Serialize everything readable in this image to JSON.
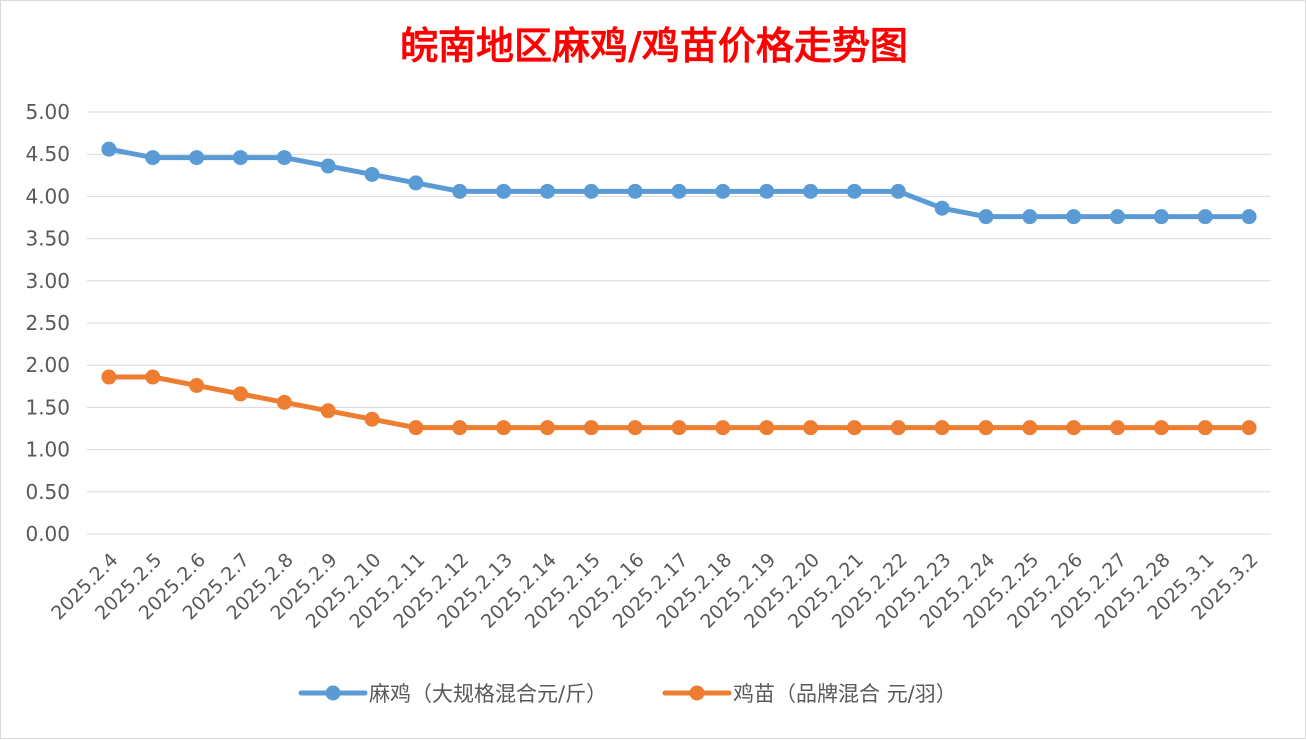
{
  "chart_data": {
    "type": "line",
    "title": "皖南地区麻鸡/鸡苗价格走势图",
    "categories": [
      "2025.2.4",
      "2025.2.5",
      "2025.2.6",
      "2025.2.7",
      "2025.2.8",
      "2025.2.9",
      "2025.2.10",
      "2025.2.11",
      "2025.2.12",
      "2025.2.13",
      "2025.2.14",
      "2025.2.15",
      "2025.2.16",
      "2025.2.17",
      "2025.2.18",
      "2025.2.19",
      "2025.2.20",
      "2025.2.21",
      "2025.2.22",
      "2025.2.23",
      "2025.2.24",
      "2025.2.25",
      "2025.2.26",
      "2025.2.27",
      "2025.2.28",
      "2025.3.1",
      "2025.3.2"
    ],
    "ylim": [
      0,
      5
    ],
    "yticks": [
      "0.00",
      "0.50",
      "1.00",
      "1.50",
      "2.00",
      "2.50",
      "3.00",
      "3.50",
      "4.00",
      "4.50",
      "5.00"
    ],
    "grid": true,
    "legend": "bottom",
    "series": [
      {
        "name": "麻鸡（大规格混合元/斤）",
        "color": "#5b9bd5",
        "values": [
          4.56,
          4.46,
          4.46,
          4.46,
          4.46,
          4.36,
          4.26,
          4.16,
          4.06,
          4.06,
          4.06,
          4.06,
          4.06,
          4.06,
          4.06,
          4.06,
          4.06,
          4.06,
          4.06,
          3.86,
          3.76,
          3.76,
          3.76,
          3.76,
          3.76,
          3.76,
          3.76
        ]
      },
      {
        "name": "鸡苗（品牌混合 元/羽）",
        "color": "#ed7d31",
        "values": [
          1.86,
          1.86,
          1.76,
          1.66,
          1.56,
          1.46,
          1.36,
          1.26,
          1.26,
          1.26,
          1.26,
          1.26,
          1.26,
          1.26,
          1.26,
          1.26,
          1.26,
          1.26,
          1.26,
          1.26,
          1.26,
          1.26,
          1.26,
          1.26,
          1.26,
          1.26,
          1.26
        ]
      }
    ]
  }
}
